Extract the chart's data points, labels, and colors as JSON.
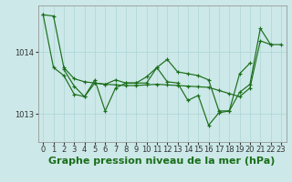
{
  "title": "Graphe pression niveau de la mer (hPa)",
  "bg_color": "#cce8e8",
  "line_color": "#1a6e1a",
  "grid_color": "#add4d4",
  "xlim": [
    -0.5,
    23.5
  ],
  "ylim": [
    1012.55,
    1014.75
  ],
  "yticks": [
    1013,
    1014
  ],
  "xticks": [
    0,
    1,
    2,
    3,
    4,
    5,
    6,
    7,
    8,
    9,
    10,
    11,
    12,
    13,
    14,
    15,
    16,
    17,
    18,
    19,
    20,
    21,
    22,
    23
  ],
  "series": [
    {
      "x": [
        0,
        1,
        2,
        3,
        4,
        5,
        6,
        7,
        8,
        9,
        10,
        11,
        12,
        13,
        14,
        15,
        16,
        17,
        18,
        19,
        20,
        21,
        22,
        23
      ],
      "y": [
        1014.6,
        1014.58,
        1013.75,
        1013.57,
        1013.52,
        1013.5,
        1013.48,
        1013.47,
        1013.46,
        1013.46,
        1013.47,
        1013.48,
        1013.47,
        1013.46,
        1013.45,
        1013.44,
        1013.43,
        1013.38,
        1013.33,
        1013.28,
        1013.42,
        1014.18,
        1014.12,
        1014.12
      ]
    },
    {
      "x": [
        0,
        1,
        2,
        3,
        4,
        5,
        6,
        7,
        8,
        9,
        10,
        11,
        12,
        13,
        14,
        15,
        16,
        17,
        18,
        19,
        20,
        21,
        22
      ],
      "y": [
        1014.6,
        1013.75,
        1013.62,
        1013.32,
        1013.28,
        1013.55,
        1013.05,
        1013.42,
        1013.5,
        1013.5,
        1013.6,
        1013.75,
        1013.52,
        1013.5,
        1013.22,
        1013.3,
        1012.82,
        1013.02,
        1013.05,
        1013.35,
        1013.48,
        1014.38,
        1014.12
      ]
    },
    {
      "x": [
        2,
        3,
        4,
        5,
        6,
        7,
        8,
        9,
        10,
        11,
        12,
        13,
        14,
        15,
        16,
        17,
        18,
        19,
        20
      ],
      "y": [
        1013.72,
        1013.45,
        1013.28,
        1013.5,
        1013.48,
        1013.55,
        1013.5,
        1013.5,
        1013.5,
        1013.75,
        1013.88,
        1013.68,
        1013.65,
        1013.62,
        1013.55,
        1013.05,
        1013.05,
        1013.65,
        1013.82
      ]
    }
  ],
  "title_fontsize": 8,
  "tick_fontsize": 6
}
